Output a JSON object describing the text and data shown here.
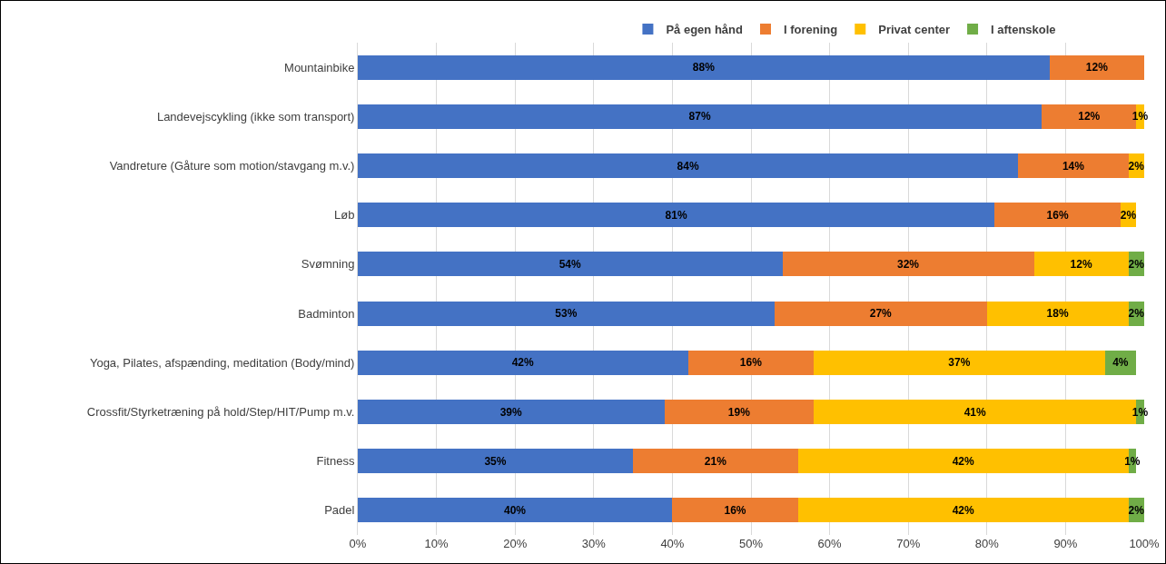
{
  "chart_data": {
    "type": "bar",
    "orientation": "horizontal",
    "stacked": true,
    "legend": "top",
    "grid": "x",
    "categories": [
      "Mountainbike",
      "Landevejscykling (ikke som transport)",
      "Vandreture (Gåture som motion/stavgang m.v.)",
      "Løb",
      "Svømning",
      "Badminton",
      "Yoga, Pilates, afspænding, meditation (Body/mind)",
      "Crossfit/Styrketræning på hold/Step/HIT/Pump m.v.",
      "Fitness",
      "Padel"
    ],
    "series": [
      {
        "name": "På egen hånd",
        "color": "#4472c4",
        "values": [
          88,
          87,
          84,
          81,
          54,
          53,
          42,
          39,
          35,
          40
        ],
        "value_labels": [
          "88%",
          "87%",
          "84%",
          "81%",
          "54%",
          "53%",
          "42%",
          "39%",
          "35%",
          "40%"
        ]
      },
      {
        "name": "I forening",
        "color": "#ed7d31",
        "values": [
          12,
          12,
          14,
          16,
          32,
          27,
          16,
          19,
          21,
          16
        ],
        "value_labels": [
          "12%",
          "12%",
          "14%",
          "16%",
          "32%",
          "27%",
          "16%",
          "19%",
          "21%",
          "16%"
        ]
      },
      {
        "name": "Privat center",
        "color": "#ffc000",
        "values": [
          null,
          1,
          2,
          2,
          12,
          18,
          37,
          41,
          42,
          42
        ],
        "value_labels": [
          null,
          "1%",
          "2%",
          "2%",
          "12%",
          "18%",
          "37%",
          "41%",
          "42%",
          "42%"
        ]
      },
      {
        "name": "I aftenskole",
        "color": "#70ad47",
        "values": [
          null,
          null,
          null,
          null,
          2,
          2,
          4,
          1,
          1,
          2
        ],
        "value_labels": [
          null,
          null,
          null,
          null,
          "2%",
          "2%",
          "4%",
          "1%",
          "1%",
          "2%"
        ]
      }
    ],
    "xlim": [
      0,
      100
    ],
    "xticks": [
      {
        "value": 0,
        "label": "0%"
      },
      {
        "value": 10,
        "label": "10%"
      },
      {
        "value": 20,
        "label": "20%"
      },
      {
        "value": 30,
        "label": "30%"
      },
      {
        "value": 40,
        "label": "40%"
      },
      {
        "value": 50,
        "label": "50%"
      },
      {
        "value": 60,
        "label": "60%"
      },
      {
        "value": 70,
        "label": "70%"
      },
      {
        "value": 80,
        "label": "80%"
      },
      {
        "value": 90,
        "label": "90%"
      },
      {
        "value": 100,
        "label": "100%"
      }
    ]
  }
}
